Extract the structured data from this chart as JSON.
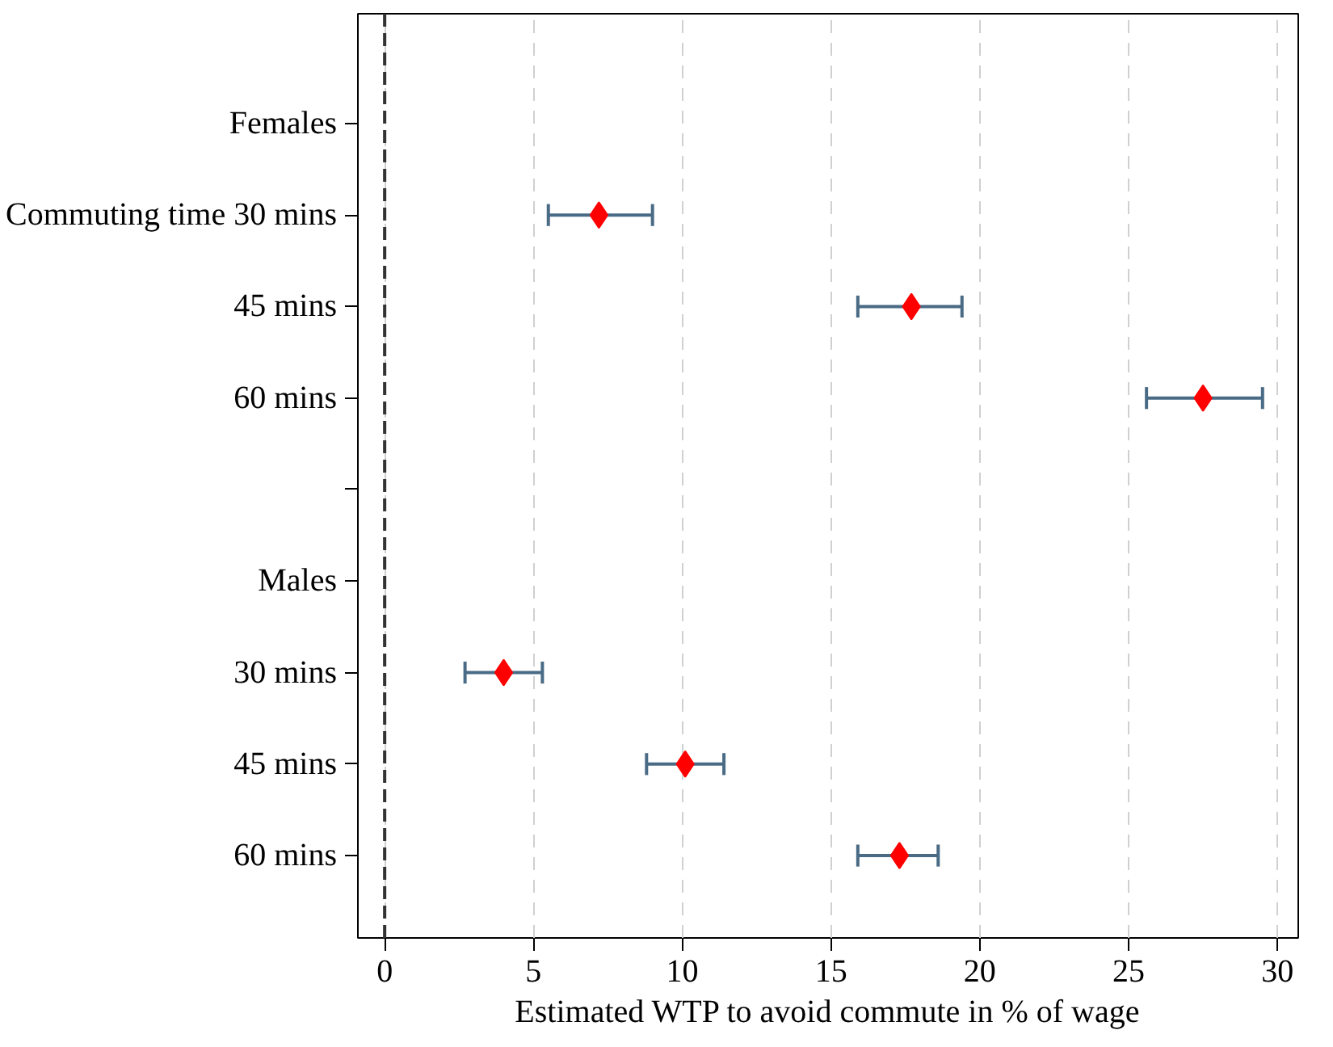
{
  "chart_data": {
    "type": "scatter",
    "orientation": "horizontal",
    "xlabel": "Estimated WTP to avoid commute in % of wage",
    "categories": [
      "Females",
      "Commuting time 30 mins",
      "45 mins",
      "60 mins",
      null,
      "Males",
      "30 mins",
      "45 mins",
      "60 mins"
    ],
    "series": [
      {
        "color": "#ff0000",
        "values": [
          null,
          7.2,
          17.7,
          27.5,
          null,
          null,
          4.0,
          10.1,
          17.3
        ],
        "errors": [
          null,
          [
            5.5,
            9.0
          ],
          [
            15.9,
            19.4
          ],
          [
            25.6,
            29.5
          ],
          null,
          null,
          [
            2.7,
            5.3
          ],
          [
            8.8,
            11.4
          ],
          [
            15.9,
            18.6
          ]
        ]
      }
    ],
    "marker": "diamond",
    "xlim": [
      -0.9,
      30.7
    ],
    "xticks": [
      0,
      5,
      10,
      15,
      20,
      25,
      30
    ],
    "grid": "x",
    "ref_lines": [
      {
        "axis": "x",
        "value": 0,
        "color": "#333333",
        "line_style": "dashed"
      }
    ]
  }
}
